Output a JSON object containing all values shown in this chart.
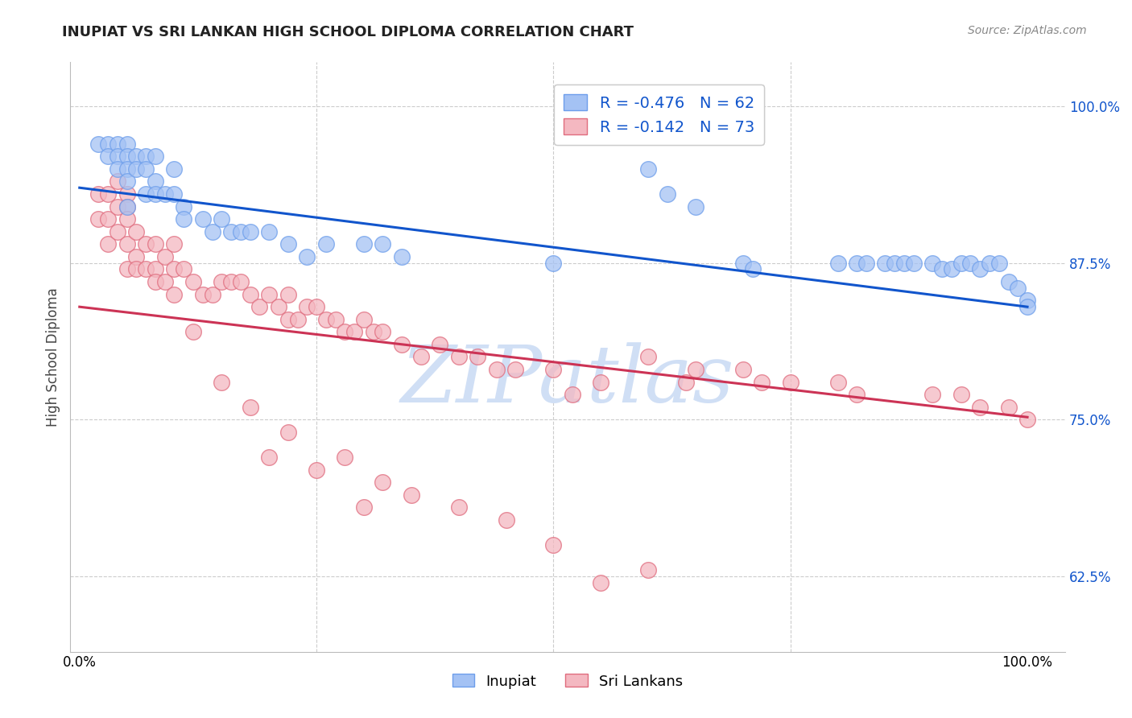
{
  "title": "INUPIAT VS SRI LANKAN HIGH SCHOOL DIPLOMA CORRELATION CHART",
  "source": "Source: ZipAtlas.com",
  "ylabel": "High School Diploma",
  "inupiat_r": -0.476,
  "inupiat_n": 62,
  "srilanka_r": -0.142,
  "srilanka_n": 73,
  "inupiat_color": "#a4c2f4",
  "inupiat_edge_color": "#6d9eeb",
  "srilanka_color": "#f4b8c1",
  "srilanka_edge_color": "#e06c7e",
  "inupiat_line_color": "#1155cc",
  "srilanka_line_color": "#cc3355",
  "watermark_color": "#d0dff5",
  "background_color": "#ffffff",
  "xlim": [
    -0.01,
    1.04
  ],
  "ylim": [
    0.565,
    1.035
  ],
  "yticks": [
    0.625,
    0.75,
    0.875,
    1.0
  ],
  "ytick_labels": [
    "62.5%",
    "75.0%",
    "87.5%",
    "100.0%"
  ],
  "xticks": [
    0.0,
    0.25,
    0.5,
    0.75,
    1.0
  ],
  "title_fontsize": 13,
  "tick_fontsize": 12,
  "legend_fontsize": 14,
  "inupiat_x": [
    0.02,
    0.03,
    0.03,
    0.04,
    0.04,
    0.04,
    0.05,
    0.05,
    0.05,
    0.05,
    0.05,
    0.06,
    0.06,
    0.07,
    0.07,
    0.07,
    0.08,
    0.08,
    0.08,
    0.09,
    0.1,
    0.1,
    0.11,
    0.11,
    0.13,
    0.14,
    0.15,
    0.16,
    0.17,
    0.18,
    0.2,
    0.22,
    0.24,
    0.26,
    0.3,
    0.32,
    0.34,
    0.5,
    0.6,
    0.62,
    0.65,
    0.7,
    0.71,
    0.8,
    0.82,
    0.83,
    0.85,
    0.86,
    0.87,
    0.88,
    0.9,
    0.91,
    0.92,
    0.93,
    0.94,
    0.95,
    0.96,
    0.97,
    0.98,
    0.99,
    1.0,
    1.0
  ],
  "inupiat_y": [
    0.97,
    0.97,
    0.96,
    0.97,
    0.96,
    0.95,
    0.97,
    0.96,
    0.95,
    0.94,
    0.92,
    0.96,
    0.95,
    0.96,
    0.95,
    0.93,
    0.96,
    0.94,
    0.93,
    0.93,
    0.95,
    0.93,
    0.92,
    0.91,
    0.91,
    0.9,
    0.91,
    0.9,
    0.9,
    0.9,
    0.9,
    0.89,
    0.88,
    0.89,
    0.89,
    0.89,
    0.88,
    0.875,
    0.95,
    0.93,
    0.92,
    0.875,
    0.87,
    0.875,
    0.875,
    0.875,
    0.875,
    0.875,
    0.875,
    0.875,
    0.875,
    0.87,
    0.87,
    0.875,
    0.875,
    0.87,
    0.875,
    0.875,
    0.86,
    0.855,
    0.845,
    0.84
  ],
  "srilanka_x": [
    0.02,
    0.02,
    0.03,
    0.03,
    0.03,
    0.04,
    0.04,
    0.04,
    0.05,
    0.05,
    0.05,
    0.05,
    0.05,
    0.06,
    0.06,
    0.06,
    0.07,
    0.07,
    0.08,
    0.08,
    0.08,
    0.09,
    0.09,
    0.1,
    0.1,
    0.1,
    0.11,
    0.12,
    0.13,
    0.14,
    0.15,
    0.16,
    0.17,
    0.18,
    0.19,
    0.2,
    0.21,
    0.22,
    0.22,
    0.23,
    0.24,
    0.25,
    0.26,
    0.27,
    0.28,
    0.29,
    0.3,
    0.31,
    0.32,
    0.34,
    0.36,
    0.38,
    0.4,
    0.42,
    0.44,
    0.46,
    0.5,
    0.52,
    0.55,
    0.6,
    0.64,
    0.65,
    0.7,
    0.72,
    0.75,
    0.8,
    0.82,
    0.9,
    0.93,
    0.95,
    0.98,
    1.0
  ],
  "srilanka_y": [
    0.93,
    0.91,
    0.93,
    0.91,
    0.89,
    0.94,
    0.92,
    0.9,
    0.93,
    0.92,
    0.91,
    0.89,
    0.87,
    0.9,
    0.88,
    0.87,
    0.89,
    0.87,
    0.89,
    0.87,
    0.86,
    0.88,
    0.86,
    0.89,
    0.87,
    0.85,
    0.87,
    0.86,
    0.85,
    0.85,
    0.86,
    0.86,
    0.86,
    0.85,
    0.84,
    0.85,
    0.84,
    0.83,
    0.85,
    0.83,
    0.84,
    0.84,
    0.83,
    0.83,
    0.82,
    0.82,
    0.83,
    0.82,
    0.82,
    0.81,
    0.8,
    0.81,
    0.8,
    0.8,
    0.79,
    0.79,
    0.79,
    0.77,
    0.78,
    0.8,
    0.78,
    0.79,
    0.79,
    0.78,
    0.78,
    0.78,
    0.77,
    0.77,
    0.77,
    0.76,
    0.76,
    0.75
  ],
  "srilanka_extra_x": [
    0.12,
    0.15,
    0.18,
    0.2,
    0.22,
    0.25,
    0.28,
    0.3,
    0.32,
    0.35,
    0.4,
    0.45,
    0.5,
    0.55,
    0.6
  ],
  "srilanka_extra_y": [
    0.82,
    0.78,
    0.76,
    0.72,
    0.74,
    0.71,
    0.72,
    0.68,
    0.7,
    0.69,
    0.68,
    0.67,
    0.65,
    0.62,
    0.63
  ],
  "blue_line_x0": 0.0,
  "blue_line_y0": 0.935,
  "blue_line_x1": 1.0,
  "blue_line_y1": 0.84,
  "pink_line_x0": 0.0,
  "pink_line_y0": 0.84,
  "pink_line_x1": 1.0,
  "pink_line_y1": 0.752
}
